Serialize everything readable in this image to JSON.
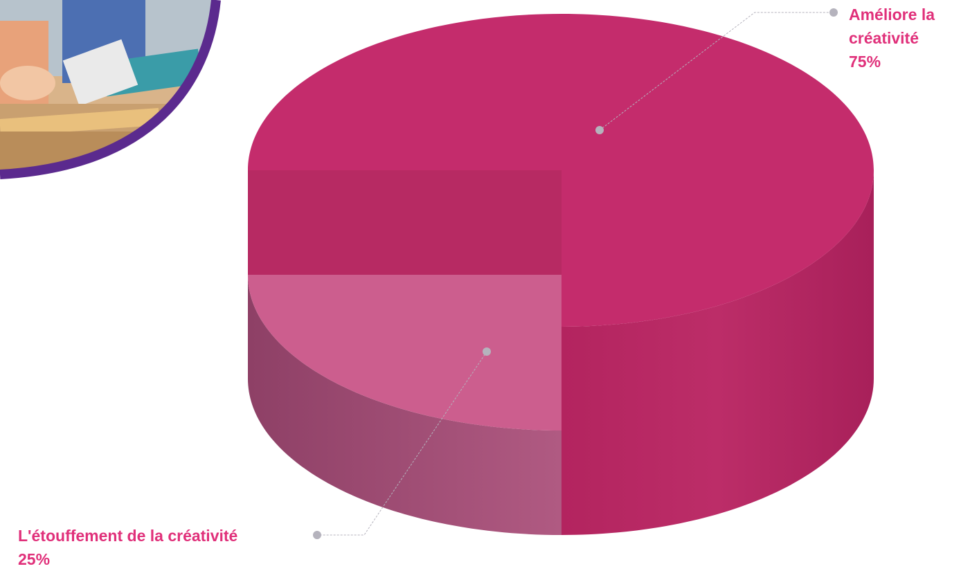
{
  "chart_data": {
    "type": "pie",
    "style": "3d-cylinder",
    "slices": [
      {
        "label_lines": [
          "Améliore la",
          "créativité"
        ],
        "value_text": "75%",
        "value": 75,
        "color": "#c42c6c",
        "side_color": "#b0245e"
      },
      {
        "label_lines": [
          "L'étouffement de la créativité"
        ],
        "value_text": "25%",
        "value": 25,
        "color": "#cc5e8e",
        "side_color": "#9a4870"
      }
    ],
    "label_color": "#e0307a",
    "leader_dot_color": "#b5b3bd"
  }
}
